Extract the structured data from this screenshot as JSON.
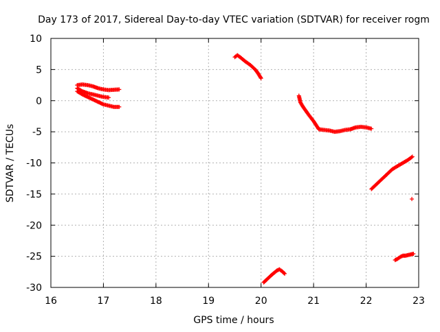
{
  "chart_data": {
    "type": "scatter",
    "title": "Day 173 of 2017, Sidereal Day-to-day VTEC variation (SDTVAR) for receiver rogm",
    "xlabel": "GPS time / hours",
    "ylabel": "SDTVAR / TECUs",
    "xlim": [
      16,
      23
    ],
    "ylim": [
      -30,
      10
    ],
    "xticks": [
      16,
      17,
      18,
      19,
      20,
      21,
      22,
      23
    ],
    "yticks": [
      -30,
      -25,
      -20,
      -15,
      -10,
      -5,
      0,
      5,
      10
    ],
    "grid": true,
    "legend": "none",
    "marker": "+",
    "color": "#ff0000",
    "series": [
      {
        "x": [
          16.5,
          16.6,
          16.7,
          16.8,
          16.9,
          17.0,
          17.1,
          17.2,
          17.3
        ],
        "y": [
          2.5,
          2.6,
          2.5,
          2.3,
          2.0,
          1.8,
          1.7,
          1.75,
          1.8
        ]
      },
      {
        "x": [
          16.5,
          16.6,
          16.7,
          16.8,
          16.9,
          17.0,
          17.1
        ],
        "y": [
          2.0,
          1.5,
          1.2,
          1.0,
          0.8,
          0.6,
          0.5
        ]
      },
      {
        "x": [
          16.5,
          16.6,
          16.7,
          16.8,
          16.9,
          17.0,
          17.1,
          17.2,
          17.3
        ],
        "y": [
          1.5,
          1.0,
          0.6,
          0.2,
          -0.2,
          -0.6,
          -0.8,
          -1.0,
          -1.0
        ]
      },
      {
        "x": [
          19.5,
          19.55,
          19.6,
          19.7,
          19.8,
          19.9,
          19.95,
          20.0
        ],
        "y": [
          7.0,
          7.3,
          7.0,
          6.3,
          5.7,
          4.9,
          4.3,
          3.6
        ]
      },
      {
        "x": [
          20.05,
          20.1,
          20.2,
          20.3,
          20.35,
          20.4,
          20.45
        ],
        "y": [
          -29.2,
          -28.8,
          -28.0,
          -27.3,
          -27.1,
          -27.4,
          -27.8
        ]
      },
      {
        "x": [
          20.72,
          20.75,
          20.8,
          20.9,
          21.0,
          21.1,
          21.2,
          21.3,
          21.4,
          21.5,
          21.6,
          21.7,
          21.8,
          21.9,
          22.0,
          22.1
        ],
        "y": [
          0.8,
          -0.3,
          -1.0,
          -2.2,
          -3.3,
          -4.6,
          -4.7,
          -4.8,
          -5.0,
          -4.9,
          -4.7,
          -4.6,
          -4.3,
          -4.2,
          -4.3,
          -4.5
        ]
      },
      {
        "x": [
          22.1,
          22.2,
          22.3,
          22.4,
          22.5,
          22.6,
          22.7,
          22.8,
          22.88
        ],
        "y": [
          -14.2,
          -13.4,
          -12.6,
          -11.8,
          -11.0,
          -10.5,
          -10.0,
          -9.5,
          -9.0
        ]
      },
      {
        "x": [
          22.55,
          22.6,
          22.65,
          22.7,
          22.75,
          22.8,
          22.85,
          22.9
        ],
        "y": [
          -25.6,
          -25.4,
          -25.1,
          -24.9,
          -24.9,
          -24.8,
          -24.7,
          -24.6
        ]
      },
      {
        "x": [
          22.87
        ],
        "y": [
          -15.8
        ]
      }
    ]
  }
}
